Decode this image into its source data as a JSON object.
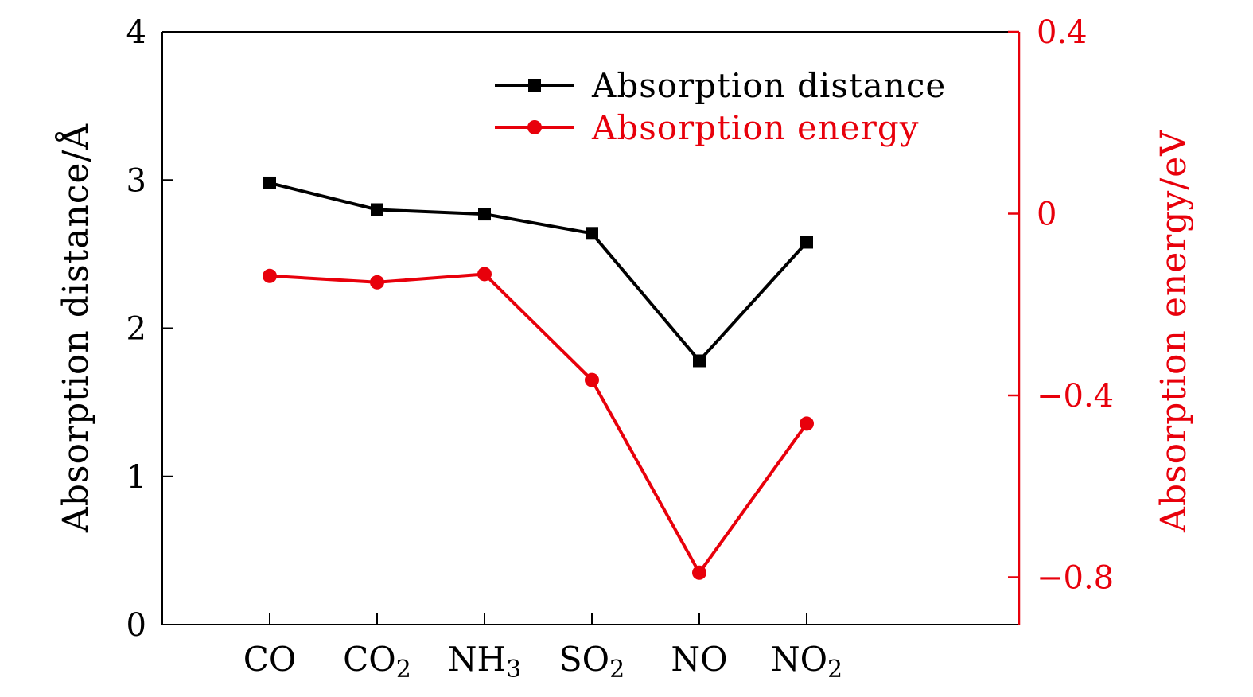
{
  "chart_data": {
    "type": "line",
    "categories": [
      {
        "base": "CO",
        "sub": ""
      },
      {
        "base": "CO",
        "sub": "2"
      },
      {
        "base": "NH",
        "sub": "3"
      },
      {
        "base": "SO",
        "sub": "2"
      },
      {
        "base": "NO",
        "sub": ""
      },
      {
        "base": "NO",
        "sub": "2"
      }
    ],
    "ylabel_left": "Absorption distance/Å",
    "ylabel_right": "Absorption energy/eV",
    "ylim_left": [
      0,
      4
    ],
    "ylim_right": [
      -0.9,
      0.4
    ],
    "yticks_left": [
      {
        "value": 0,
        "label": "0"
      },
      {
        "value": 1,
        "label": "1"
      },
      {
        "value": 2,
        "label": "2"
      },
      {
        "value": 3,
        "label": "3"
      },
      {
        "value": 4,
        "label": "4"
      }
    ],
    "yticks_right": [
      {
        "value": 0.4,
        "label": "0.4"
      },
      {
        "value": 0,
        "label": "0"
      },
      {
        "value": -0.4,
        "label": "−0.4"
      },
      {
        "value": -0.8,
        "label": "−0.8"
      }
    ],
    "series": [
      {
        "name": "Absorption distance",
        "axis": "left",
        "marker": "square",
        "color": "#000000",
        "values": [
          2.98,
          2.8,
          2.77,
          2.64,
          1.78,
          2.58
        ]
      },
      {
        "name": "Absorption energy",
        "axis": "right",
        "marker": "circle",
        "color": "#e8000b",
        "values": [
          -0.137,
          -0.151,
          -0.133,
          -0.366,
          -0.79,
          -0.462
        ]
      }
    ],
    "legend_position": "top-right",
    "grid": false
  }
}
